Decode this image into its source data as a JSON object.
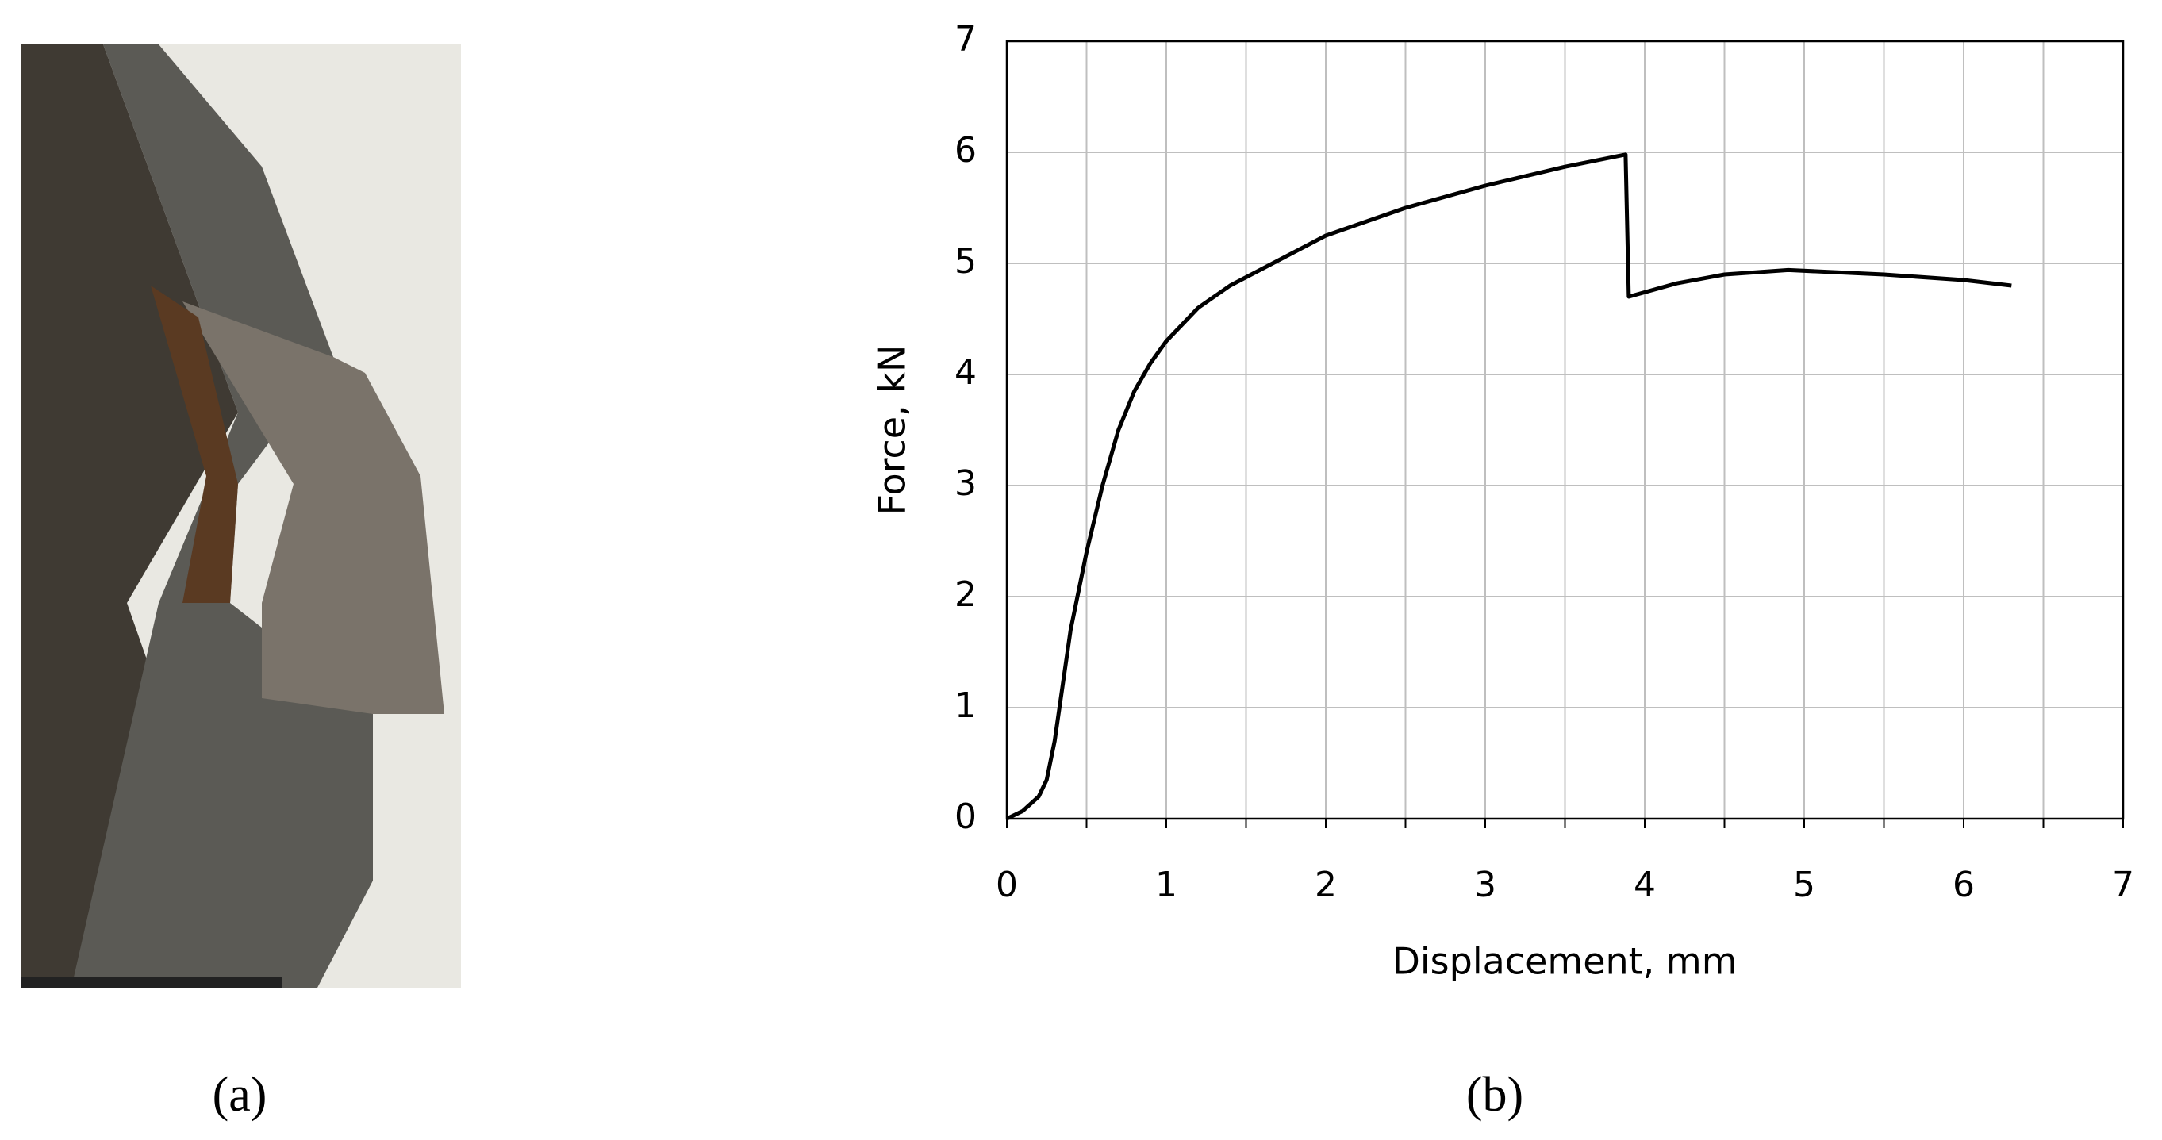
{
  "panel_labels": [
    "(a)",
    "(b)"
  ],
  "chart_data": {
    "type": "line",
    "x_label": "Displacement, mm",
    "y_label": "Force, kN",
    "x": [
      0,
      0.1,
      0.2,
      0.25,
      0.3,
      0.35,
      0.4,
      0.5,
      0.6,
      0.7,
      0.8,
      0.9,
      1.0,
      1.2,
      1.4,
      1.6,
      2.0,
      2.5,
      3.0,
      3.5,
      3.88,
      3.9,
      4.2,
      4.5,
      4.9,
      5.5,
      6.0,
      6.3
    ],
    "series": [
      {
        "color": "#000000",
        "values": [
          0,
          0.07,
          0.2,
          0.35,
          0.7,
          1.2,
          1.7,
          2.4,
          3.0,
          3.5,
          3.85,
          4.1,
          4.3,
          4.6,
          4.8,
          4.95,
          5.25,
          5.5,
          5.7,
          5.87,
          5.98,
          4.7,
          4.82,
          4.9,
          4.94,
          4.9,
          4.85,
          4.8
        ]
      }
    ],
    "xlim": [
      0,
      7
    ],
    "ylim": [
      0,
      7
    ],
    "xticks": [
      0,
      1,
      2,
      3,
      4,
      5,
      6,
      7
    ],
    "yticks": [
      0,
      1,
      2,
      3,
      4,
      5,
      6,
      7
    ],
    "x_minor_grid": [
      0.5,
      1.5,
      2.5,
      3.5,
      4.5,
      5.5,
      6.5
    ],
    "grid": true
  }
}
